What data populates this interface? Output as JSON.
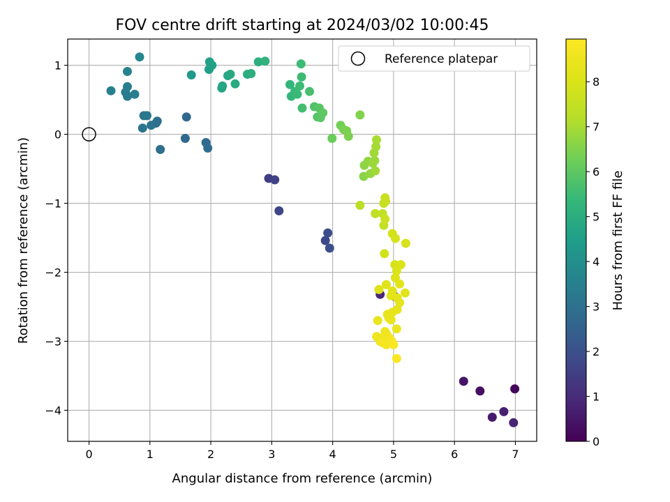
{
  "chart_data": {
    "type": "scatter",
    "title": "FOV centre drift starting at 2024/03/02 10:00:45",
    "xlabel": "Angular distance from reference (arcmin)",
    "ylabel": "Rotation from reference (arcmin)",
    "xlim": [
      -0.35,
      7.35
    ],
    "ylim": [
      -4.45,
      1.38
    ],
    "xticks": [
      0,
      1,
      2,
      3,
      4,
      5,
      6,
      7
    ],
    "xtick_labels": [
      "0",
      "1",
      "2",
      "3",
      "4",
      "5",
      "6",
      "7"
    ],
    "yticks": [
      1,
      0,
      -1,
      -2,
      -3,
      -4
    ],
    "ytick_labels": [
      "1",
      "0",
      "−1",
      "−2",
      "−3",
      "−4"
    ],
    "grid": true,
    "legend": {
      "label": "Reference platepar",
      "location": "upper-right"
    },
    "reference_point": {
      "x": 0,
      "y": 0
    },
    "colorbar": {
      "label": "Hours from first FF file",
      "colormap": "viridis",
      "range": [
        0,
        8.95
      ],
      "ticks": [
        0,
        1,
        2,
        3,
        4,
        5,
        6,
        7,
        8
      ],
      "tick_labels": [
        "0",
        "1",
        "2",
        "3",
        "4",
        "5",
        "6",
        "7",
        "8"
      ]
    },
    "series": [
      {
        "points": [
          [
            6.99,
            -3.69,
            0.15
          ],
          [
            6.42,
            -3.72,
            0.3
          ],
          [
            6.15,
            -3.58,
            0.45
          ],
          [
            6.62,
            -4.1,
            0.6
          ],
          [
            6.81,
            -4.02,
            0.7
          ],
          [
            6.97,
            -4.18,
            0.8
          ],
          [
            4.78,
            -2.32,
            0.9
          ],
          [
            5.02,
            -2.35,
            1.0
          ],
          [
            2.95,
            -0.64,
            1.5
          ],
          [
            3.05,
            -0.66,
            1.6
          ],
          [
            3.12,
            -1.11,
            1.7
          ],
          [
            3.88,
            -1.54,
            1.8
          ],
          [
            3.92,
            -1.43,
            1.9
          ],
          [
            3.95,
            -1.65,
            2.0
          ],
          [
            1.6,
            0.25,
            2.7
          ],
          [
            1.58,
            -0.06,
            2.75
          ],
          [
            1.92,
            -0.12,
            2.8
          ],
          [
            1.95,
            -0.2,
            2.85
          ],
          [
            1.17,
            -0.22,
            2.9
          ],
          [
            1.12,
            0.19,
            2.95
          ],
          [
            1.1,
            0.16,
            3.0
          ],
          [
            1.02,
            0.13,
            3.05
          ],
          [
            0.88,
            0.09,
            3.1
          ],
          [
            0.9,
            0.27,
            3.15
          ],
          [
            0.95,
            0.27,
            3.2
          ],
          [
            0.63,
            0.55,
            3.3
          ],
          [
            0.6,
            0.61,
            3.35
          ],
          [
            0.75,
            0.58,
            3.4
          ],
          [
            0.63,
            0.69,
            3.45
          ],
          [
            0.36,
            0.63,
            3.5
          ],
          [
            0.63,
            0.91,
            3.6
          ],
          [
            0.83,
            1.12,
            3.7
          ],
          [
            1.68,
            0.86,
            4.3
          ],
          [
            1.97,
            0.94,
            4.5
          ],
          [
            1.98,
            1.05,
            4.6
          ],
          [
            2.02,
            1.0,
            4.6
          ],
          [
            2.18,
            0.67,
            4.7
          ],
          [
            2.19,
            0.7,
            4.75
          ],
          [
            2.28,
            0.85,
            4.8
          ],
          [
            2.32,
            0.87,
            4.85
          ],
          [
            2.4,
            0.73,
            4.9
          ],
          [
            2.6,
            0.87,
            5.0
          ],
          [
            2.66,
            0.88,
            5.05
          ],
          [
            2.78,
            1.05,
            5.1
          ],
          [
            2.89,
            1.06,
            5.15
          ],
          [
            3.3,
            0.72,
            5.3
          ],
          [
            3.32,
            0.55,
            5.35
          ],
          [
            3.38,
            0.62,
            5.4
          ],
          [
            3.42,
            0.58,
            5.45
          ],
          [
            3.46,
            0.7,
            5.5
          ],
          [
            3.49,
            0.83,
            5.5
          ],
          [
            3.48,
            1.02,
            5.5
          ],
          [
            3.5,
            0.38,
            5.6
          ],
          [
            3.62,
            0.62,
            5.65
          ],
          [
            3.7,
            0.4,
            5.8
          ],
          [
            3.75,
            0.25,
            5.85
          ],
          [
            3.78,
            0.38,
            5.9
          ],
          [
            3.8,
            0.24,
            5.95
          ],
          [
            3.84,
            0.31,
            6.0
          ],
          [
            3.99,
            -0.06,
            6.2
          ],
          [
            4.13,
            0.13,
            6.3
          ],
          [
            4.18,
            0.07,
            6.35
          ],
          [
            4.23,
            0.05,
            6.4
          ],
          [
            4.26,
            -0.03,
            6.45
          ],
          [
            4.45,
            0.28,
            6.5
          ],
          [
            4.51,
            -0.61,
            6.6
          ],
          [
            4.52,
            -0.45,
            6.65
          ],
          [
            4.58,
            -0.39,
            6.7
          ],
          [
            4.62,
            -0.57,
            6.75
          ],
          [
            4.66,
            -0.42,
            6.8
          ],
          [
            4.69,
            -0.38,
            6.85
          ],
          [
            4.7,
            -0.53,
            6.9
          ],
          [
            4.68,
            -0.27,
            6.9
          ],
          [
            4.71,
            -0.18,
            6.95
          ],
          [
            4.72,
            -0.08,
            7.0
          ],
          [
            4.45,
            -1.03,
            7.3
          ],
          [
            4.7,
            -1.15,
            7.4
          ],
          [
            4.82,
            -1.15,
            7.45
          ],
          [
            4.84,
            -1.32,
            7.5
          ],
          [
            4.84,
            -1.0,
            7.55
          ],
          [
            4.86,
            -0.92,
            7.6
          ],
          [
            4.87,
            -0.97,
            7.6
          ],
          [
            4.86,
            -1.23,
            7.65
          ],
          [
            4.85,
            -1.73,
            7.8
          ],
          [
            4.98,
            -1.44,
            7.85
          ],
          [
            5.03,
            -1.51,
            7.9
          ],
          [
            5.2,
            -1.58,
            7.9
          ],
          [
            5.02,
            -1.89,
            7.95
          ],
          [
            5.12,
            -1.89,
            8.0
          ],
          [
            5.05,
            -1.98,
            8.0
          ],
          [
            5.03,
            -2.08,
            8.05
          ],
          [
            4.76,
            -2.25,
            8.1
          ],
          [
            4.88,
            -2.18,
            8.15
          ],
          [
            4.98,
            -2.27,
            8.15
          ],
          [
            5.1,
            -2.17,
            8.2
          ],
          [
            5.19,
            -2.3,
            8.2
          ],
          [
            4.96,
            -2.34,
            8.25
          ],
          [
            5.06,
            -2.37,
            8.25
          ],
          [
            5.1,
            -2.44,
            8.3
          ],
          [
            5.06,
            -2.54,
            8.3
          ],
          [
            4.98,
            -2.58,
            8.35
          ],
          [
            4.9,
            -2.61,
            8.35
          ],
          [
            4.92,
            -2.66,
            8.4
          ],
          [
            4.96,
            -2.69,
            8.4
          ],
          [
            4.74,
            -2.7,
            8.4
          ],
          [
            5.05,
            -2.82,
            8.45
          ],
          [
            4.86,
            -2.86,
            8.5
          ],
          [
            4.72,
            -2.93,
            8.55
          ],
          [
            4.8,
            -2.96,
            8.55
          ],
          [
            4.89,
            -2.9,
            8.6
          ],
          [
            4.78,
            -3.0,
            8.6
          ],
          [
            4.94,
            -2.96,
            8.65
          ],
          [
            4.82,
            -3.02,
            8.7
          ],
          [
            4.88,
            -3.05,
            8.75
          ],
          [
            4.97,
            -3.0,
            8.8
          ],
          [
            5.0,
            -3.05,
            8.85
          ],
          [
            5.05,
            -3.25,
            8.9
          ]
        ]
      }
    ]
  }
}
